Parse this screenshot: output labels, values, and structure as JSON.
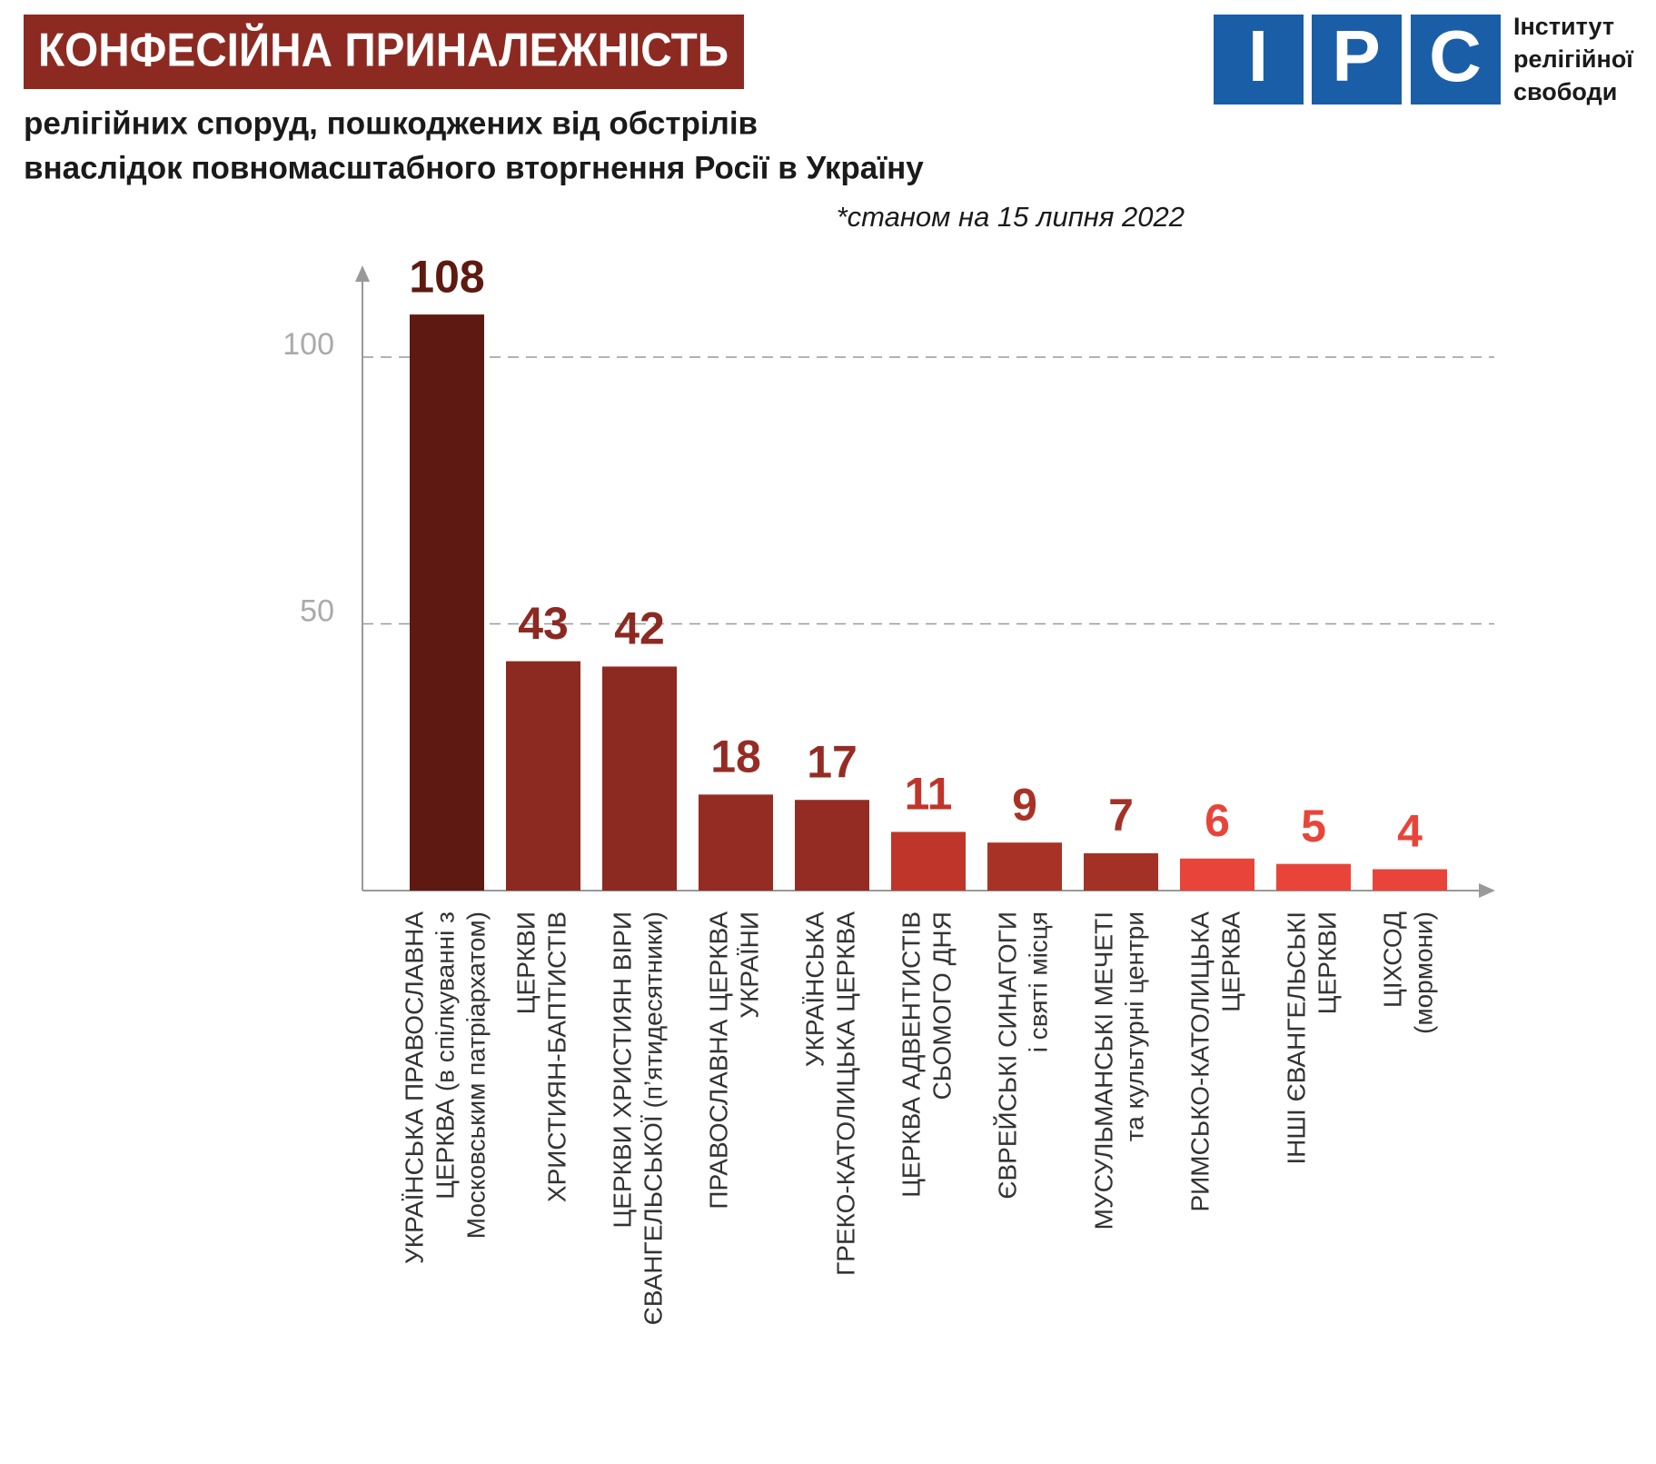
{
  "header": {
    "title": "КОНФЕСІЙНА ПРИНАЛЕЖНІСТЬ",
    "subtitle": [
      "релігійних споруд, пошкоджених від обстрілів",
      "внаслідок повномасштабного вторгнення Росії в Україну"
    ],
    "note": "*станом на 15 липня 2022"
  },
  "logo": {
    "letters": [
      "І",
      "Р",
      "С"
    ],
    "text": [
      "Інститут",
      "релігійної",
      "свободи"
    ]
  },
  "chart_data": {
    "type": "bar",
    "categories": [
      [
        "УКРАЇНСЬКА ПРАВОСЛАВНА",
        "ЦЕРКВА (в спілкуванні з",
        "Московським патріархатом)"
      ],
      [
        "ЦЕРКВИ",
        "ХРИСТИЯН-БАПТИСТІВ"
      ],
      [
        "ЦЕРКВИ ХРИСТИЯН ВІРИ",
        "ЄВАНГЕЛЬСЬКОЇ (п’ятидесятники)"
      ],
      [
        "ПРАВОСЛАВНА ЦЕРКВА",
        "УКРАЇНИ"
      ],
      [
        "УКРАЇНСЬКА",
        "ГРЕКО-КАТОЛИЦЬКА ЦЕРКВА"
      ],
      [
        "ЦЕРКВА АДВЕНТИСТІВ",
        "СЬОМОГО ДНЯ"
      ],
      [
        "ЄВРЕЙСЬКІ СИНАГОГИ",
        "і святі місця"
      ],
      [
        "МУСУЛЬМАНСЬКІ МЕЧЕТІ",
        "та культурні центри"
      ],
      [
        "РИМСЬКО-КАТОЛИЦЬКА",
        "ЦЕРКВА"
      ],
      [
        "ІНШІ ЄВАНГЕЛЬСЬКІ",
        "ЦЕРКВИ"
      ],
      [
        "ЦІХСОД",
        "(мормони)"
      ]
    ],
    "values": [
      108,
      43,
      42,
      18,
      17,
      11,
      9,
      7,
      6,
      5,
      4
    ],
    "colors": [
      "#5e1a12",
      "#8c2a22",
      "#8c2a22",
      "#952c24",
      "#952c24",
      "#c0352a",
      "#a93226",
      "#a33126",
      "#e8443a",
      "#e8443a",
      "#e8443a"
    ],
    "ylim": [
      0,
      115
    ],
    "yticks": [
      50,
      100
    ],
    "grid": true
  }
}
